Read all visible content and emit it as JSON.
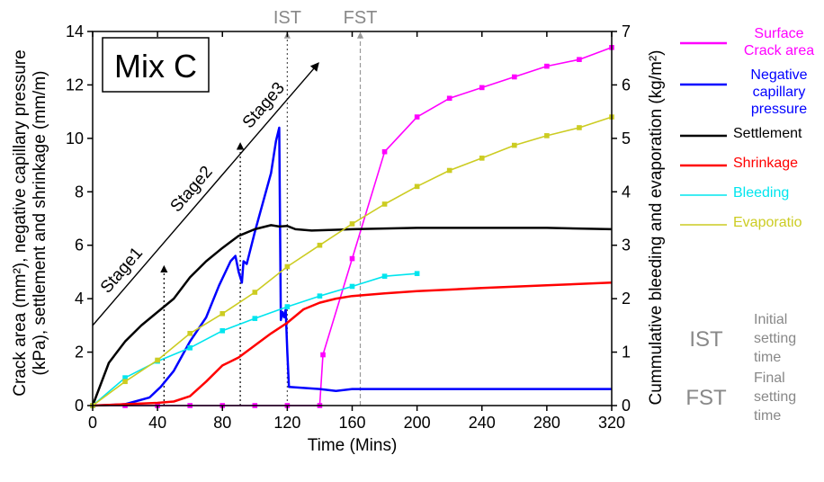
{
  "chart_data": {
    "type": "line",
    "panel_label": "Mix C",
    "xlabel": "Time (Mins)",
    "ylabel_left": [
      "Crack area (mm²), negative capillary pressure",
      "(kPa), settlement and shrinkage (mm/m)"
    ],
    "ylabel_right": "Cummulative bleeding and evaporation (kg/m²)",
    "xlim": [
      0,
      320
    ],
    "ylim_left": [
      0,
      14
    ],
    "ylim_right": [
      0,
      7
    ],
    "x_ticks": [
      "0",
      "40",
      "80",
      "120",
      "160",
      "200",
      "240",
      "280",
      "320"
    ],
    "y_ticks_left": [
      "0",
      "2",
      "4",
      "6",
      "8",
      "10",
      "12",
      "14"
    ],
    "y_ticks_right": [
      "0",
      "1",
      "2",
      "3",
      "4",
      "5",
      "6",
      "7"
    ],
    "series": [
      {
        "name": "Surface Crack area",
        "axis": "left",
        "color": "#ff00ff",
        "markers": true,
        "x": [
          0,
          20,
          40,
          60,
          80,
          100,
          120,
          140,
          142,
          160,
          180,
          200,
          220,
          240,
          260,
          280,
          300,
          320
        ],
        "y": [
          0,
          0,
          0,
          0,
          0,
          0,
          0,
          0,
          1.9,
          5.5,
          9.5,
          10.8,
          11.5,
          11.9,
          12.3,
          12.7,
          12.95,
          13.4
        ]
      },
      {
        "name": "Negative capillary pressure",
        "axis": "left",
        "color": "#0000ff",
        "markers": false,
        "x": [
          0,
          20,
          35,
          42,
          50,
          60,
          70,
          78,
          85,
          88,
          90,
          92,
          93,
          95,
          100,
          105,
          110,
          113,
          115,
          116,
          117,
          118,
          119,
          120,
          121,
          125,
          140,
          150,
          160,
          170,
          200,
          240,
          280,
          320
        ],
        "y": [
          0,
          0.05,
          0.3,
          0.7,
          1.3,
          2.4,
          3.3,
          4.5,
          5.4,
          5.6,
          5.0,
          4.6,
          5.4,
          5.3,
          6.5,
          7.6,
          8.7,
          9.9,
          10.4,
          3.2,
          3.5,
          3.3,
          3.6,
          2.0,
          0.7,
          0.68,
          0.62,
          0.55,
          0.62,
          0.62,
          0.62,
          0.62,
          0.62,
          0.62
        ]
      },
      {
        "name": "Settlement",
        "axis": "left",
        "color": "#000000",
        "markers": false,
        "x": [
          0,
          10,
          20,
          30,
          40,
          50,
          60,
          70,
          80,
          90,
          100,
          110,
          115,
          120,
          125,
          135,
          160,
          200,
          240,
          280,
          320
        ],
        "y": [
          0,
          1.6,
          2.4,
          3.0,
          3.5,
          4.0,
          4.8,
          5.4,
          5.9,
          6.35,
          6.6,
          6.75,
          6.7,
          6.72,
          6.6,
          6.55,
          6.6,
          6.65,
          6.65,
          6.65,
          6.6
        ]
      },
      {
        "name": "Shrinkage",
        "axis": "left",
        "color": "#ff0000",
        "markers": false,
        "x": [
          0,
          20,
          40,
          50,
          60,
          70,
          80,
          90,
          100,
          110,
          120,
          130,
          140,
          150,
          160,
          180,
          200,
          240,
          280,
          320
        ],
        "y": [
          0,
          0.05,
          0.1,
          0.15,
          0.35,
          0.9,
          1.5,
          1.8,
          2.25,
          2.7,
          3.1,
          3.6,
          3.85,
          4.0,
          4.1,
          4.2,
          4.28,
          4.4,
          4.5,
          4.6
        ]
      },
      {
        "name": "Bleeding",
        "axis": "right",
        "color": "#00e5ee",
        "markers": true,
        "x": [
          0,
          20,
          40,
          60,
          80,
          100,
          120,
          140,
          160,
          180,
          200
        ],
        "y": [
          0,
          0.52,
          0.83,
          1.08,
          1.4,
          1.63,
          1.85,
          2.05,
          2.23,
          2.42,
          2.47
        ]
      },
      {
        "name": "Evaporation",
        "axis": "right",
        "color": "#cccc22",
        "markers": true,
        "x": [
          0,
          20,
          40,
          60,
          80,
          100,
          120,
          140,
          160,
          180,
          200,
          220,
          240,
          260,
          280,
          300,
          320
        ],
        "y": [
          0,
          0.45,
          0.85,
          1.35,
          1.72,
          2.12,
          2.6,
          3.0,
          3.4,
          3.77,
          4.1,
          4.4,
          4.63,
          4.87,
          5.05,
          5.2,
          5.4
        ]
      }
    ],
    "legend_labels": [
      {
        "text": [
          "Surface",
          "Crack area"
        ],
        "color": "#ff00ff"
      },
      {
        "text": [
          "Negative",
          "capillary",
          "pressure"
        ],
        "color": "#0000ff"
      },
      {
        "text": [
          "Settlement"
        ],
        "color": "#000000"
      },
      {
        "text": [
          "Shrinkage"
        ],
        "color": "#ff0000"
      },
      {
        "text": [
          "Bleeding"
        ],
        "color": "#00e5ee"
      },
      {
        "text": [
          "Evaporatio"
        ],
        "color": "#cccc22"
      }
    ],
    "legend_position": "right",
    "vlines": [
      {
        "label": "IST",
        "x": 120
      },
      {
        "label": "FST",
        "x": 165
      }
    ],
    "stage_arrows": [
      {
        "label": "Stage1",
        "x": 44
      },
      {
        "label": "Stage2",
        "x": 91
      },
      {
        "label": "Stage3",
        "x": 137
      }
    ],
    "notes": [
      {
        "abbr": "IST",
        "lines": [
          "Initial",
          "setting",
          "time"
        ]
      },
      {
        "abbr": "FST",
        "lines": [
          "Final",
          "setting",
          "time"
        ]
      }
    ]
  }
}
